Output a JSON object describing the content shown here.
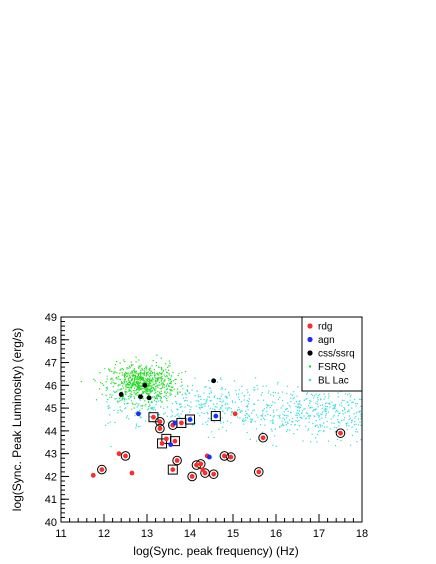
{
  "chart_data": {
    "type": "scatter",
    "title": "",
    "xlabel": "log(Sync. peak frequency) (Hz)",
    "ylabel": "log(Sync. Peak Luminosity) (erg/s)",
    "xlim": [
      11,
      18
    ],
    "ylim": [
      40,
      49
    ],
    "x_ticks": [
      11,
      12,
      13,
      14,
      15,
      16,
      17,
      18
    ],
    "y_ticks": [
      40,
      41,
      42,
      43,
      44,
      45,
      46,
      47,
      48,
      49
    ],
    "legend_position": "top-right",
    "grid": false,
    "colors": {
      "rdg": "#ff2a2a",
      "agn": "#1a2cff",
      "css_ssrq": "#000000",
      "fsrq": "#22dd22",
      "bl_lac": "#33dddd"
    },
    "series": [
      {
        "name": "rdg",
        "marker": "filled-circle",
        "points": [
          [
            11.75,
            42.05
          ],
          [
            11.95,
            42.3
          ],
          [
            12.35,
            43.0
          ],
          [
            12.5,
            42.9
          ],
          [
            12.65,
            42.15
          ],
          [
            13.15,
            44.6
          ],
          [
            13.3,
            44.4
          ],
          [
            13.3,
            44.1
          ],
          [
            13.35,
            43.45
          ],
          [
            13.45,
            43.65
          ],
          [
            13.6,
            44.25
          ],
          [
            13.6,
            42.3
          ],
          [
            13.65,
            43.55
          ],
          [
            13.7,
            42.7
          ],
          [
            13.8,
            44.35
          ],
          [
            14.05,
            42.0
          ],
          [
            14.15,
            42.5
          ],
          [
            14.25,
            42.55
          ],
          [
            14.3,
            42.3
          ],
          [
            14.35,
            42.15
          ],
          [
            14.4,
            42.9
          ],
          [
            14.55,
            42.1
          ],
          [
            14.8,
            42.9
          ],
          [
            14.95,
            42.85
          ],
          [
            15.05,
            44.75
          ],
          [
            15.6,
            42.2
          ],
          [
            15.7,
            43.7
          ],
          [
            17.5,
            43.9
          ]
        ]
      },
      {
        "name": "agn",
        "marker": "filled-circle",
        "points": [
          [
            12.8,
            44.75
          ],
          [
            13.55,
            43.4
          ],
          [
            13.65,
            44.35
          ],
          [
            14.0,
            44.5
          ],
          [
            14.45,
            42.85
          ],
          [
            14.6,
            44.65
          ]
        ]
      },
      {
        "name": "css/ssrq",
        "marker": "filled-circle",
        "points": [
          [
            12.4,
            45.6
          ],
          [
            12.85,
            45.5
          ],
          [
            12.95,
            46.0
          ],
          [
            13.05,
            45.45
          ],
          [
            14.55,
            46.2
          ]
        ]
      },
      {
        "name": "FSRQ",
        "marker": "small-dot",
        "cloud": {
          "center": [
            12.9,
            46.1
          ],
          "spread": [
            0.38,
            0.42
          ],
          "count": 700
        }
      },
      {
        "name": "BL Lac",
        "marker": "small-dot",
        "cloud": {
          "x_range": [
            12.0,
            18.0
          ],
          "center_y": 45.0,
          "spread_y": 0.55,
          "count": 800
        }
      }
    ],
    "highlighted_points": {
      "boxed": [
        [
          13.15,
          44.6
        ],
        [
          13.35,
          43.45
        ],
        [
          13.45,
          43.65
        ],
        [
          13.65,
          43.55
        ],
        [
          13.6,
          42.3
        ],
        [
          13.8,
          44.35
        ],
        [
          14.0,
          44.5
        ],
        [
          14.6,
          44.65
        ]
      ],
      "ringed": [
        [
          11.95,
          42.3
        ],
        [
          12.5,
          42.9
        ],
        [
          13.3,
          44.4
        ],
        [
          13.3,
          44.1
        ],
        [
          13.6,
          44.25
        ],
        [
          13.7,
          42.7
        ],
        [
          14.05,
          42.0
        ],
        [
          14.15,
          42.5
        ],
        [
          14.25,
          42.55
        ],
        [
          14.35,
          42.15
        ],
        [
          14.55,
          42.1
        ],
        [
          14.8,
          42.9
        ],
        [
          14.95,
          42.85
        ],
        [
          15.6,
          42.2
        ],
        [
          15.7,
          43.7
        ],
        [
          17.5,
          43.9
        ]
      ]
    }
  }
}
